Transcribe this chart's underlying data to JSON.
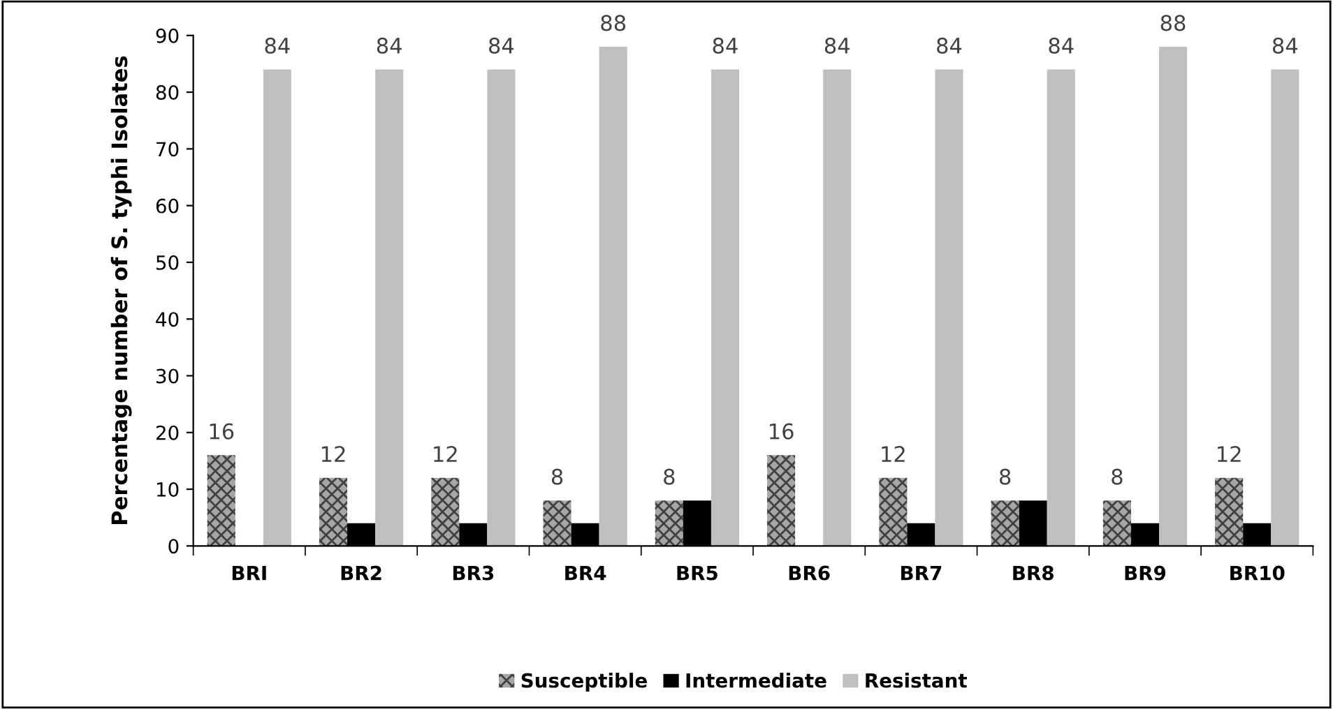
{
  "chart_data": {
    "type": "bar",
    "ylabel": "Percentage number of S. typhi Isolates",
    "categories": [
      "BRI",
      "BR2",
      "BR3",
      "BR4",
      "BR5",
      "BR6",
      "BR7",
      "BR8",
      "BR9",
      "BR10"
    ],
    "series": [
      {
        "name": "Susceptible",
        "color": "#a6a6a6",
        "values": [
          16,
          12,
          12,
          8,
          8,
          16,
          12,
          8,
          8,
          12
        ],
        "value_labels": [
          "16",
          "12",
          "12",
          "8",
          "8",
          "16",
          "12",
          "8",
          "8",
          "12"
        ]
      },
      {
        "name": "Intermediate",
        "color": "#000000",
        "values": [
          0,
          4,
          4,
          4,
          8,
          0,
          4,
          8,
          4,
          4
        ]
      },
      {
        "name": "Resistant",
        "color": "#bfbfbf",
        "values": [
          84,
          84,
          84,
          88,
          84,
          84,
          84,
          84,
          88,
          84
        ],
        "value_labels": [
          "84",
          "84",
          "84",
          "88",
          "84",
          "84",
          "84",
          "84",
          "88",
          "84"
        ]
      }
    ],
    "ylim": [
      0,
      90
    ],
    "yticks": [
      0,
      10,
      20,
      30,
      40,
      50,
      60,
      70,
      80,
      90
    ],
    "grid": false,
    "legend": "bottom"
  }
}
